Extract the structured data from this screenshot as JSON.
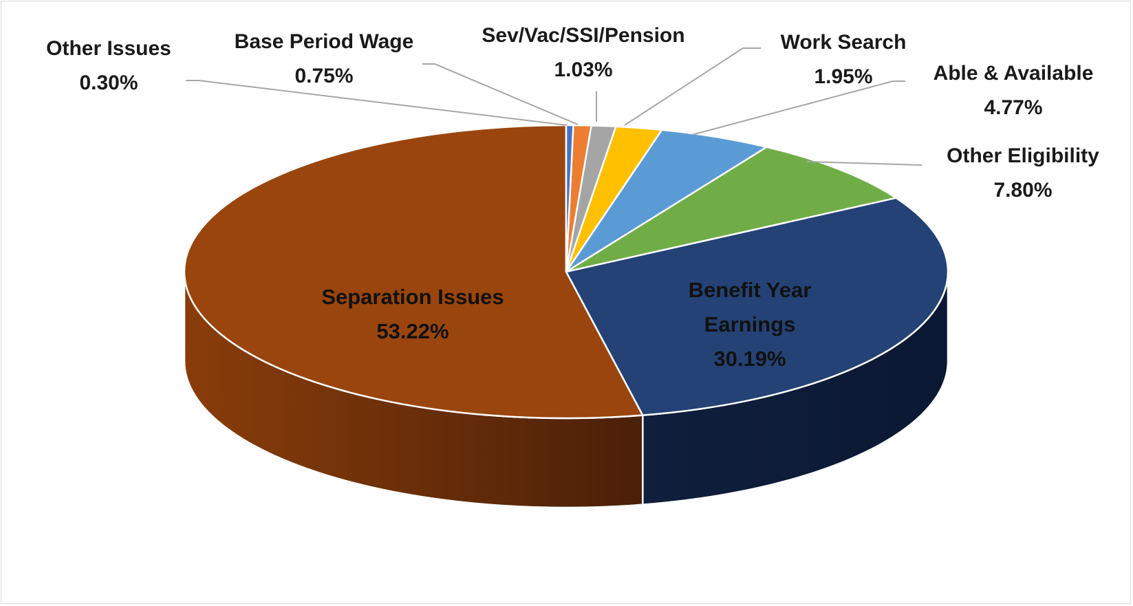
{
  "chart_data": {
    "type": "pie",
    "style": "3d",
    "title": "",
    "legend": "none",
    "slices": [
      {
        "name": "Separation Issues",
        "label_lines": [
          "Separation Issues"
        ],
        "value": 53.22,
        "label": "53.22%",
        "color": "#9A450D",
        "side_light": "#8A3D0A",
        "side_dark": "#4A2008"
      },
      {
        "name": "Benefit Year Earnings",
        "label_lines": [
          "Benefit Year",
          "Earnings"
        ],
        "value": 30.19,
        "label": "30.19%",
        "color": "#244275",
        "side_light": "#0F1F3C",
        "side_dark": "#0B1833"
      },
      {
        "name": "Other Eligibility",
        "label_lines": [
          "Other Eligibility"
        ],
        "value": 7.8,
        "label": "7.80%",
        "color": "#70AD47",
        "side_light": "#4E7A31",
        "side_dark": "#3C5E25"
      },
      {
        "name": "Able & Available",
        "label_lines": [
          "Able & Available"
        ],
        "value": 4.77,
        "label": "4.77%",
        "color": "#5B9BD5",
        "side_light": "#3F6E98",
        "side_dark": "#2F5577"
      },
      {
        "name": "Work Search",
        "label_lines": [
          "Work Search"
        ],
        "value": 1.95,
        "label": "1.95%",
        "color": "#FFC000",
        "side_light": "#B38600",
        "side_dark": "#8C6900"
      },
      {
        "name": "Sev/Vac/SSI/Pension",
        "label_lines": [
          "Sev/Vac/SSI/Pension"
        ],
        "value": 1.03,
        "label": "1.03%",
        "color": "#A5A5A5",
        "side_light": "#767676",
        "side_dark": "#5E5E5E"
      },
      {
        "name": "Base Period Wage",
        "label_lines": [
          "Base Period Wage"
        ],
        "value": 0.75,
        "label": "0.75%",
        "color": "#ED7D31",
        "side_light": "#A85722",
        "side_dark": "#85441A"
      },
      {
        "name": "Other Issues",
        "label_lines": [
          "Other Issues"
        ],
        "value": 0.3,
        "label": "0.30%",
        "color": "#4472C4",
        "side_light": "#30508A",
        "side_dark": "#253E6B"
      }
    ]
  }
}
